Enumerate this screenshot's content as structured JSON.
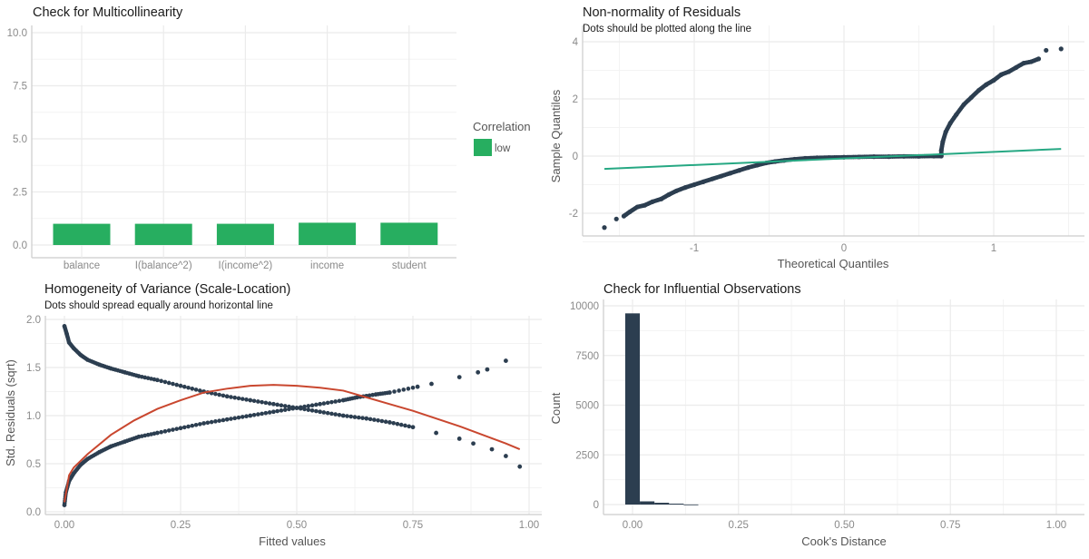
{
  "colors": {
    "bar_low": "#27ae60",
    "points": "#2c3e50",
    "qq_line": "#26a883",
    "loess": "#c9472f",
    "grid": "#ebebeb",
    "axis": "#cccccc"
  },
  "chart_data": [
    {
      "type": "bar",
      "title": "Check for Multicollinearity",
      "categories": [
        "balance",
        "I(balance^2)",
        "I(income^2)",
        "income",
        "student"
      ],
      "values": [
        1.0,
        1.0,
        1.0,
        1.05,
        1.05
      ],
      "ylim": [
        0,
        10
      ],
      "yticks": [
        "0.0",
        "2.5",
        "5.0",
        "7.5",
        "10.0"
      ],
      "ytick_values": [
        0,
        2.5,
        5,
        7.5,
        10
      ],
      "legend": {
        "title": "Correlation",
        "entries": [
          "low"
        ],
        "placement": "right"
      },
      "grid": true
    },
    {
      "type": "scatter",
      "title": "Non-normality of Residuals",
      "subtitle": "Dots should be plotted along the line",
      "xlabel": "Theoretical Quantiles",
      "ylabel": "Sample Quantiles",
      "xticks": [
        "-1",
        "0",
        "1"
      ],
      "xtick_values": [
        -1,
        0,
        1
      ],
      "yticks": [
        "-2",
        "0",
        "2",
        "4"
      ],
      "ytick_values": [
        -2,
        0,
        2,
        4
      ],
      "points": [
        [
          -1.6,
          -2.5
        ],
        [
          -1.52,
          -2.2
        ],
        [
          -1.47,
          -2.1
        ],
        [
          -1.43,
          -1.95
        ],
        [
          -1.38,
          -1.78
        ],
        [
          -1.33,
          -1.72
        ],
        [
          -1.28,
          -1.6
        ],
        [
          -1.22,
          -1.5
        ],
        [
          -1.17,
          -1.35
        ],
        [
          -1.12,
          -1.22
        ],
        [
          -1.06,
          -1.1
        ],
        [
          -1.0,
          -1.0
        ],
        [
          -0.94,
          -0.9
        ],
        [
          -0.88,
          -0.8
        ],
        [
          -0.82,
          -0.7
        ],
        [
          -0.76,
          -0.6
        ],
        [
          -0.7,
          -0.5
        ],
        [
          -0.64,
          -0.4
        ],
        [
          -0.58,
          -0.32
        ],
        [
          -0.52,
          -0.24
        ],
        [
          -0.46,
          -0.19
        ],
        [
          -0.4,
          -0.15
        ],
        [
          -0.33,
          -0.11
        ],
        [
          -0.26,
          -0.08
        ],
        [
          -0.18,
          -0.06
        ],
        [
          -0.1,
          -0.05
        ],
        [
          0.0,
          -0.04
        ],
        [
          0.1,
          -0.03
        ],
        [
          0.2,
          -0.02
        ],
        [
          0.3,
          -0.02
        ],
        [
          0.4,
          -0.01
        ],
        [
          0.5,
          -0.01
        ],
        [
          0.6,
          0.0
        ],
        [
          0.65,
          0.0
        ],
        [
          0.65,
          0.2
        ],
        [
          0.66,
          0.5
        ],
        [
          0.68,
          0.85
        ],
        [
          0.71,
          1.15
        ],
        [
          0.75,
          1.45
        ],
        [
          0.8,
          1.8
        ],
        [
          0.85,
          2.05
        ],
        [
          0.9,
          2.3
        ],
        [
          0.95,
          2.5
        ],
        [
          1.0,
          2.65
        ],
        [
          1.05,
          2.85
        ],
        [
          1.1,
          2.95
        ],
        [
          1.15,
          3.1
        ],
        [
          1.2,
          3.25
        ],
        [
          1.25,
          3.3
        ],
        [
          1.3,
          3.4
        ],
        [
          1.35,
          3.7
        ],
        [
          1.45,
          3.75
        ]
      ],
      "line": [
        [
          -1.6,
          -0.45
        ],
        [
          1.45,
          0.25
        ]
      ],
      "grid": true
    },
    {
      "type": "scatter",
      "title": "Homogeneity of Variance (Scale-Location)",
      "subtitle": "Dots should spread equally around horizontal line",
      "xlabel": "Fitted values",
      "ylabel": "Std. Residuals (sqrt)",
      "xticks": [
        "0.00",
        "0.25",
        "0.50",
        "0.75",
        "1.00"
      ],
      "xtick_values": [
        0,
        0.25,
        0.5,
        0.75,
        1.0
      ],
      "yticks": [
        "0.0",
        "0.5",
        "1.0",
        "1.5",
        "2.0"
      ],
      "ytick_values": [
        0,
        0.5,
        1.0,
        1.5,
        2.0
      ],
      "upper_branch": [
        [
          0.0,
          1.93
        ],
        [
          0.005,
          1.85
        ],
        [
          0.01,
          1.76
        ],
        [
          0.02,
          1.7
        ],
        [
          0.035,
          1.63
        ],
        [
          0.05,
          1.58
        ],
        [
          0.075,
          1.53
        ],
        [
          0.1,
          1.49
        ],
        [
          0.13,
          1.45
        ],
        [
          0.16,
          1.41
        ],
        [
          0.2,
          1.37
        ],
        [
          0.25,
          1.31
        ],
        [
          0.3,
          1.25
        ],
        [
          0.35,
          1.2
        ],
        [
          0.4,
          1.16
        ],
        [
          0.45,
          1.12
        ],
        [
          0.5,
          1.08
        ],
        [
          0.55,
          1.04
        ],
        [
          0.6,
          1.0
        ],
        [
          0.65,
          0.97
        ],
        [
          0.7,
          0.93
        ],
        [
          0.75,
          0.88
        ],
        [
          0.8,
          0.82
        ],
        [
          0.85,
          0.76
        ],
        [
          0.88,
          0.71
        ],
        [
          0.92,
          0.65
        ],
        [
          0.95,
          0.58
        ],
        [
          0.98,
          0.47
        ]
      ],
      "lower_branch": [
        [
          0.0,
          0.07
        ],
        [
          0.003,
          0.2
        ],
        [
          0.01,
          0.32
        ],
        [
          0.02,
          0.4
        ],
        [
          0.035,
          0.49
        ],
        [
          0.05,
          0.55
        ],
        [
          0.075,
          0.62
        ],
        [
          0.1,
          0.68
        ],
        [
          0.13,
          0.73
        ],
        [
          0.16,
          0.78
        ],
        [
          0.2,
          0.82
        ],
        [
          0.25,
          0.87
        ],
        [
          0.3,
          0.92
        ],
        [
          0.35,
          0.96
        ],
        [
          0.4,
          1.0
        ],
        [
          0.45,
          1.04
        ],
        [
          0.5,
          1.08
        ],
        [
          0.55,
          1.12
        ],
        [
          0.6,
          1.16
        ],
        [
          0.63,
          1.19
        ],
        [
          0.67,
          1.22
        ],
        [
          0.7,
          1.24
        ],
        [
          0.76,
          1.3
        ],
        [
          0.79,
          1.33
        ],
        [
          0.85,
          1.4
        ],
        [
          0.89,
          1.45
        ],
        [
          0.91,
          1.48
        ],
        [
          0.95,
          1.57
        ]
      ],
      "loess": [
        [
          0.0,
          0.1
        ],
        [
          0.01,
          0.38
        ],
        [
          0.02,
          0.46
        ],
        [
          0.05,
          0.6
        ],
        [
          0.1,
          0.8
        ],
        [
          0.15,
          0.95
        ],
        [
          0.2,
          1.07
        ],
        [
          0.25,
          1.16
        ],
        [
          0.3,
          1.24
        ],
        [
          0.35,
          1.28
        ],
        [
          0.4,
          1.31
        ],
        [
          0.45,
          1.32
        ],
        [
          0.5,
          1.31
        ],
        [
          0.55,
          1.29
        ],
        [
          0.6,
          1.26
        ],
        [
          0.65,
          1.19
        ],
        [
          0.7,
          1.12
        ],
        [
          0.75,
          1.05
        ],
        [
          0.8,
          0.97
        ],
        [
          0.85,
          0.89
        ],
        [
          0.9,
          0.8
        ],
        [
          0.95,
          0.71
        ],
        [
          0.98,
          0.65
        ]
      ],
      "grid": true
    },
    {
      "type": "bar",
      "title": "Check for Influential Observations",
      "xlabel": "Cook's Distance",
      "ylabel": "Count",
      "xticks": [
        "0.00",
        "0.25",
        "0.50",
        "0.75",
        "1.00"
      ],
      "xtick_values": [
        0,
        0.25,
        0.5,
        0.75,
        1.0
      ],
      "yticks": [
        "0",
        "2500",
        "5000",
        "7500",
        "10000"
      ],
      "ytick_values": [
        0,
        2500,
        5000,
        7500,
        10000
      ],
      "bin_width": 0.0345,
      "bin_centers": [
        0.0,
        0.0345,
        0.069,
        0.1035,
        0.138
      ],
      "counts": [
        9620,
        160,
        90,
        45,
        5
      ],
      "grid": true
    }
  ]
}
